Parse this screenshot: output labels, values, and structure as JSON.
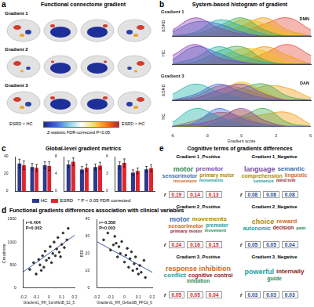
{
  "panels": {
    "a": {
      "label": "a",
      "title": "Functional connectome gradient",
      "rows": [
        "Gradient 1",
        "Gradient 2",
        "Gradient 3"
      ],
      "colorbar": {
        "low": "ESRD < HC",
        "high": "ESRD > HC",
        "caption": "Z-statistic FDR-corrected P<0.05"
      }
    },
    "b": {
      "label": "b",
      "title": "System-based histogram of gradient"
    },
    "c": {
      "label": "c",
      "title": "Global-level gradient metrics",
      "note": "* P < 0.05 FDR corrected"
    },
    "d": {
      "label": "d",
      "title": "Functional gradients differences association with clinical variables"
    },
    "e": {
      "label": "e",
      "title": "Cognitive terms of gradients differences",
      "r_label": "r",
      "clouds": [
        {
          "title": "Gradient 1_Positive",
          "words": [
            "motor",
            "premotor",
            "sensorimotor",
            "primary motor",
            "movement",
            "movements"
          ],
          "r": [
            0.19,
            0.14,
            0.13
          ],
          "color": "#d62728"
        },
        {
          "title": "Gradient 1_Negative",
          "words": [
            "language",
            "semantic",
            "comprehension",
            "linguistic",
            "sentence",
            "mind tom"
          ],
          "r": [
            0.08,
            0.08,
            0.08
          ],
          "color": "#1f4e9c"
        },
        {
          "title": "Gradient 2_Positive",
          "words": [
            "motor",
            "movements",
            "sensorimotor",
            "premotor",
            "primary motor",
            "movement"
          ],
          "r": [
            0.24,
            0.16,
            0.15
          ],
          "color": "#d62728"
        },
        {
          "title": "Gradient 2_Negative",
          "words": [
            "choice",
            "reward",
            "autonomic",
            "decision",
            "pain"
          ],
          "r": [
            0.05,
            0.05,
            0.04
          ],
          "color": "#1f4e9c"
        },
        {
          "title": "Gradient 3_Positive",
          "words": [
            "response inhibition",
            "conflict",
            "cognitive control",
            "inhibition"
          ],
          "r": [
            0.05,
            0.05,
            0.04
          ],
          "color": "#d62728"
        },
        {
          "title": "Gradient 3_Negative",
          "words": [
            "powerful",
            "internally",
            "guide"
          ],
          "r": [
            0.03,
            0.03,
            0.03
          ],
          "color": "#1f4e9c"
        }
      ]
    }
  },
  "chart_data": [
    {
      "type": "line",
      "heading": "Gradient 1",
      "ylabel": "ESRD",
      "annotations": [
        "DMN"
      ],
      "x": [
        -6,
        -4,
        -2,
        0,
        2,
        4,
        6
      ],
      "xlim": [
        -6,
        6
      ],
      "ylim": [
        0,
        1
      ],
      "tick_labels": false,
      "grid": false,
      "series": [
        {
          "color": "#8e44ad",
          "values": [
            0.3,
            0.9,
            0.4,
            0.1,
            0,
            0,
            0
          ]
        },
        {
          "color": "#3f6fd8",
          "values": [
            0.2,
            0.7,
            0.6,
            0.2,
            0,
            0,
            0
          ]
        },
        {
          "color": "#1fb5a6",
          "values": [
            0,
            0.2,
            0.8,
            0.5,
            0.1,
            0,
            0
          ]
        },
        {
          "color": "#4caf50",
          "values": [
            0,
            0.1,
            0.5,
            0.9,
            0.3,
            0,
            0
          ]
        },
        {
          "color": "#f1c40f",
          "values": [
            0,
            0,
            0.3,
            0.8,
            0.6,
            0.1,
            0
          ]
        },
        {
          "color": "#f39c12",
          "values": [
            0,
            0,
            0.1,
            0.5,
            0.9,
            0.3,
            0
          ]
        },
        {
          "color": "#e74c3c",
          "values": [
            0,
            0,
            0,
            0.2,
            0.6,
            0.9,
            0.3
          ]
        }
      ]
    },
    {
      "type": "line",
      "ylabel": "HC",
      "x": [
        -6,
        -4,
        -2,
        0,
        2,
        4,
        6
      ],
      "xlim": [
        -6,
        6
      ],
      "ylim": [
        0,
        1
      ],
      "tick_labels": false,
      "grid": false,
      "series": [
        {
          "color": "#8e44ad",
          "values": [
            0.4,
            0.9,
            0.3,
            0.1,
            0,
            0,
            0
          ]
        },
        {
          "color": "#3f6fd8",
          "values": [
            0.2,
            0.8,
            0.5,
            0.1,
            0,
            0,
            0
          ]
        },
        {
          "color": "#1fb5a6",
          "values": [
            0,
            0.3,
            0.8,
            0.4,
            0.1,
            0,
            0
          ]
        },
        {
          "color": "#4caf50",
          "values": [
            0,
            0.1,
            0.6,
            0.8,
            0.2,
            0,
            0
          ]
        },
        {
          "color": "#f1c40f",
          "values": [
            0,
            0,
            0.3,
            0.7,
            0.6,
            0.1,
            0
          ]
        },
        {
          "color": "#f39c12",
          "values": [
            0,
            0,
            0.1,
            0.4,
            0.8,
            0.4,
            0
          ]
        },
        {
          "color": "#e74c3c",
          "values": [
            0,
            0,
            0,
            0.1,
            0.5,
            0.9,
            0.4
          ]
        }
      ]
    },
    {
      "type": "line",
      "heading": "Gradient 3",
      "ylabel": "ESRD",
      "annotations": [
        "DAN"
      ],
      "x": [
        -6,
        -4,
        -2,
        0,
        2,
        4,
        6
      ],
      "xlim": [
        -6,
        6
      ],
      "ylim": [
        0,
        1
      ],
      "tick_labels": false,
      "grid": false,
      "series": [
        {
          "color": "#8e44ad",
          "values": [
            0,
            0.1,
            0.5,
            0.8,
            0.3,
            0,
            0
          ]
        },
        {
          "color": "#3f6fd8",
          "values": [
            0,
            0.3,
            0.8,
            0.4,
            0.1,
            0,
            0
          ]
        },
        {
          "color": "#1fb5a6",
          "values": [
            0.3,
            0.8,
            0.4,
            0.1,
            0,
            0,
            0
          ]
        },
        {
          "color": "#4caf50",
          "values": [
            0,
            0,
            0.2,
            0.6,
            0.8,
            0.2,
            0
          ]
        },
        {
          "color": "#f1c40f",
          "values": [
            0,
            0.1,
            0.4,
            0.9,
            0.4,
            0,
            0
          ]
        },
        {
          "color": "#f39c12",
          "values": [
            0,
            0,
            0.1,
            0.3,
            0.7,
            0.6,
            0.1
          ]
        },
        {
          "color": "#e74c3c",
          "values": [
            0,
            0.2,
            0.7,
            0.6,
            0.2,
            0,
            0
          ]
        }
      ]
    },
    {
      "type": "line",
      "ylabel": "HC",
      "xlabel": "Gradient score",
      "x": [
        -6,
        -4,
        -2,
        0,
        2,
        4,
        6
      ],
      "xlim": [
        -6,
        6
      ],
      "xticks": [
        -6,
        -3,
        0,
        3,
        6
      ],
      "ylim": [
        0,
        1
      ],
      "tick_labels": "x",
      "grid": false,
      "series": [
        {
          "color": "#8e44ad",
          "values": [
            0,
            0.1,
            0.4,
            0.9,
            0.3,
            0,
            0
          ]
        },
        {
          "color": "#3f6fd8",
          "values": [
            0,
            0.2,
            0.9,
            0.4,
            0.1,
            0,
            0
          ]
        },
        {
          "color": "#1fb5a6",
          "values": [
            0.2,
            0.9,
            0.5,
            0.1,
            0,
            0,
            0
          ]
        },
        {
          "color": "#4caf50",
          "values": [
            0,
            0,
            0.2,
            0.5,
            0.9,
            0.2,
            0
          ]
        },
        {
          "color": "#f1c40f",
          "values": [
            0,
            0.1,
            0.5,
            0.8,
            0.3,
            0,
            0
          ]
        },
        {
          "color": "#f39c12",
          "values": [
            0,
            0,
            0.1,
            0.4,
            0.6,
            0.7,
            0.1
          ]
        },
        {
          "color": "#e74c3c",
          "values": [
            0,
            0.3,
            0.7,
            0.5,
            0.1,
            0,
            0
          ]
        }
      ]
    },
    {
      "type": "bar",
      "categories": [
        null,
        null,
        null
      ],
      "ylim": [
        0,
        40
      ],
      "yticks": [
        0,
        20,
        40
      ],
      "tick_labels": "y",
      "grid": false,
      "series": [
        {
          "name": "HC",
          "color": "#2b3990",
          "values": [
            32,
            28,
            30
          ],
          "errors": [
            5,
            4,
            4
          ]
        },
        {
          "name": "ESRD",
          "color": "#e3242b",
          "values": [
            30,
            27,
            29
          ],
          "errors": [
            5,
            4,
            5
          ]
        }
      ]
    },
    {
      "type": "bar",
      "categories": [
        null,
        null,
        null
      ],
      "ylim": [
        0,
        8
      ],
      "yticks": [
        0,
        4,
        8
      ],
      "tick_labels": "y",
      "grid": false,
      "legend": "bottom",
      "series": [
        {
          "name": "HC",
          "color": "#2b3990",
          "values": [
            6.2,
            5.0,
            5.6
          ],
          "errors": [
            0.8,
            0.7,
            0.7
          ]
        },
        {
          "name": "ESRD",
          "color": "#e3242b",
          "values": [
            6.8,
            5.4,
            5.9
          ],
          "errors": [
            0.9,
            0.8,
            0.8
          ]
        }
      ]
    },
    {
      "type": "bar",
      "categories": [
        null,
        null,
        null
      ],
      "ylim": [
        0,
        6
      ],
      "yticks": [
        0,
        3,
        6
      ],
      "tick_labels": "y",
      "grid": false,
      "series": [
        {
          "name": "HC",
          "color": "#2b3990",
          "values": [
            4.5,
            3.2,
            3.8
          ],
          "errors": [
            0.6,
            0.5,
            0.5
          ]
        },
        {
          "name": "ESRD",
          "color": "#e3242b",
          "values": [
            4.9,
            3.5,
            4.0
          ],
          "errors": [
            0.7,
            0.5,
            0.6
          ]
        }
      ]
    },
    {
      "type": "scatter",
      "xlabel": "Gradient1_RH_SomMotB_S2_5",
      "ylabel": "Creatinine",
      "annotations": [
        "r=0.404",
        "P=0.002"
      ],
      "color": "#333333",
      "x": [
        -0.15,
        -0.12,
        -0.1,
        -0.08,
        -0.07,
        -0.05,
        -0.04,
        -0.03,
        -0.02,
        0,
        0.01,
        0.02,
        0.03,
        0.04,
        0.05,
        0.06,
        0.07,
        0.08,
        0.1,
        0.11,
        0.12,
        0.14,
        0.15,
        -0.06,
        0.09
      ],
      "values": [
        400,
        550,
        300,
        620,
        500,
        700,
        450,
        800,
        600,
        650,
        900,
        550,
        750,
        1000,
        700,
        850,
        1100,
        780,
        950,
        1200,
        880,
        1050,
        1300,
        380,
        680
      ],
      "fit": {
        "x": [
          -0.2,
          0.2
        ],
        "values": [
          350,
          1150
        ],
        "color": "#3b5ba5"
      },
      "xlim": [
        -0.2,
        0.2
      ],
      "xticks": [
        -0.2,
        -0.1,
        0,
        0.1,
        0.2
      ],
      "ylim": [
        0,
        1500
      ],
      "yticks": [
        0,
        500,
        1000,
        1500
      ],
      "grid": false
    },
    {
      "type": "scatter",
      "xlabel": "Gradient1_RH_DefaultB_PFCd_6",
      "ylabel": "BDI",
      "annotations": [
        "r=-0.358",
        "P=0.003"
      ],
      "color": "#333333",
      "x": [
        -0.15,
        -0.12,
        -0.1,
        -0.08,
        -0.07,
        -0.05,
        -0.04,
        -0.03,
        -0.02,
        0,
        0.01,
        0.02,
        0.03,
        0.04,
        0.05,
        0.06,
        0.07,
        0.08,
        0.1,
        0.11,
        0.12,
        0.14,
        0.15,
        -0.06,
        0.09
      ],
      "values": [
        28,
        32,
        22,
        25,
        30,
        18,
        24,
        20,
        27,
        15,
        19,
        23,
        12,
        17,
        21,
        10,
        14,
        18,
        8,
        13,
        9,
        16,
        6,
        26,
        11
      ],
      "fit": {
        "x": [
          -0.2,
          0.2
        ],
        "values": [
          27,
          9
        ],
        "color": "#3b5ba5"
      },
      "xlim": [
        -0.2,
        0.2
      ],
      "xticks": [
        -0.2,
        -0.1,
        0,
        0.1,
        0.2
      ],
      "ylim": [
        0,
        40
      ],
      "yticks": [
        0,
        10,
        20,
        30,
        40
      ],
      "grid": false
    }
  ]
}
